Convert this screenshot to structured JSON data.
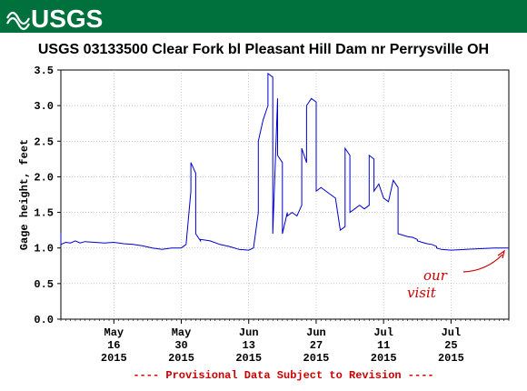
{
  "header": {
    "logo_text": "USGS",
    "brand_color": "#00703C"
  },
  "chart_data": {
    "type": "line",
    "title": "USGS 03133500 Clear Fork bl Pleasant Hill Dam nr Perrysville OH",
    "ylabel": "Gage height, feet",
    "xlabel": "",
    "ylim": [
      0.0,
      3.5
    ],
    "yticks": [
      "0.0",
      "0.5",
      "1.0",
      "1.5",
      "2.0",
      "2.5",
      "3.0",
      "3.5"
    ],
    "x_range_days": [
      "2015-05-05",
      "2015-08-06"
    ],
    "grid": true,
    "xtick_labels": [
      {
        "date": "2015-05-16",
        "month": "May",
        "day": "16",
        "year": "2015"
      },
      {
        "date": "2015-05-30",
        "month": "May",
        "day": "30",
        "year": "2015"
      },
      {
        "date": "2015-06-13",
        "month": "Jun",
        "day": "13",
        "year": "2015"
      },
      {
        "date": "2015-06-27",
        "month": "Jun",
        "day": "27",
        "year": "2015"
      },
      {
        "date": "2015-07-11",
        "month": "Jul",
        "day": "11",
        "year": "2015"
      },
      {
        "date": "2015-07-25",
        "month": "Jul",
        "day": "25",
        "year": "2015"
      }
    ],
    "line_color": "#0000CC",
    "footnote": "---- Provisional Data Subject to Revision ----",
    "footnote_color": "#CC0000",
    "annotation": {
      "line1": "our",
      "line2": "visit",
      "color": "#CC0000"
    },
    "series": [
      {
        "x": [
          "2015-05-05",
          "2015-05-05",
          "2015-05-06",
          "2015-05-07",
          "2015-05-08",
          "2015-05-09",
          "2015-05-10",
          "2015-05-12",
          "2015-05-14",
          "2015-05-16",
          "2015-05-18",
          "2015-05-20",
          "2015-05-22",
          "2015-05-24",
          "2015-05-26",
          "2015-05-28",
          "2015-05-30",
          "2015-05-31",
          "2015-06-01",
          "2015-06-01",
          "2015-06-02",
          "2015-06-02",
          "2015-06-03",
          "2015-06-03",
          "2015-06-05",
          "2015-06-07",
          "2015-06-09",
          "2015-06-11",
          "2015-06-13",
          "2015-06-14",
          "2015-06-15",
          "2015-06-15",
          "2015-06-16",
          "2015-06-17",
          "2015-06-17",
          "2015-06-18",
          "2015-06-18",
          "2015-06-19",
          "2015-06-19",
          "2015-06-20",
          "2015-06-20",
          "2015-06-21",
          "2015-06-21",
          "2015-06-22",
          "2015-06-23",
          "2015-06-24",
          "2015-06-24",
          "2015-06-25",
          "2015-06-25",
          "2015-06-26",
          "2015-06-27",
          "2015-06-27",
          "2015-06-28",
          "2015-06-29",
          "2015-06-30",
          "2015-07-01",
          "2015-07-02",
          "2015-07-03",
          "2015-07-03",
          "2015-07-04",
          "2015-07-04",
          "2015-07-05",
          "2015-07-06",
          "2015-07-07",
          "2015-07-08",
          "2015-07-08",
          "2015-07-09",
          "2015-07-09",
          "2015-07-10",
          "2015-07-11",
          "2015-07-12",
          "2015-07-13",
          "2015-07-14",
          "2015-07-14",
          "2015-07-15",
          "2015-07-16",
          "2015-07-17",
          "2015-07-18",
          "2015-07-18",
          "2015-07-19",
          "2015-07-20",
          "2015-07-21",
          "2015-07-22",
          "2015-07-22",
          "2015-07-23",
          "2015-07-25",
          "2015-07-28",
          "2015-07-31",
          "2015-08-03",
          "2015-08-06"
        ],
        "y": [
          1.22,
          1.05,
          1.08,
          1.07,
          1.1,
          1.07,
          1.09,
          1.08,
          1.07,
          1.08,
          1.06,
          1.05,
          1.03,
          1.0,
          0.98,
          1.0,
          1.0,
          1.05,
          1.8,
          2.2,
          2.05,
          1.2,
          1.1,
          1.12,
          1.1,
          1.05,
          1.02,
          0.98,
          0.97,
          1.0,
          1.5,
          2.5,
          2.8,
          3.0,
          3.45,
          3.4,
          1.2,
          3.1,
          2.3,
          2.2,
          1.2,
          1.5,
          1.45,
          1.5,
          1.45,
          1.6,
          2.4,
          2.2,
          3.0,
          3.1,
          3.05,
          1.8,
          1.85,
          1.8,
          1.75,
          1.7,
          1.25,
          1.3,
          2.4,
          2.3,
          1.5,
          1.55,
          1.6,
          1.55,
          1.6,
          2.3,
          2.25,
          1.8,
          1.9,
          1.7,
          1.65,
          1.95,
          1.85,
          1.2,
          1.18,
          1.16,
          1.15,
          1.12,
          1.1,
          1.08,
          1.06,
          1.05,
          1.02,
          1.0,
          0.98,
          0.97,
          0.98,
          0.99,
          1.0,
          1.0
        ]
      }
    ]
  }
}
